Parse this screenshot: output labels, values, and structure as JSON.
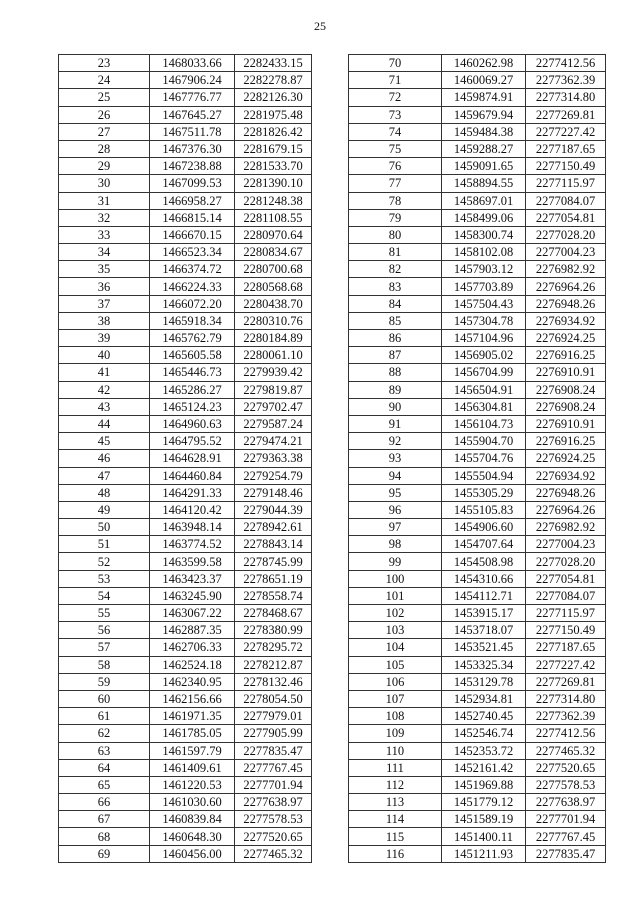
{
  "page_number": "25",
  "left_table": {
    "rows": [
      [
        "23",
        "1468033.66",
        "2282433.15"
      ],
      [
        "24",
        "1467906.24",
        "2282278.87"
      ],
      [
        "25",
        "1467776.77",
        "2282126.30"
      ],
      [
        "26",
        "1467645.27",
        "2281975.48"
      ],
      [
        "27",
        "1467511.78",
        "2281826.42"
      ],
      [
        "28",
        "1467376.30",
        "2281679.15"
      ],
      [
        "29",
        "1467238.88",
        "2281533.70"
      ],
      [
        "30",
        "1467099.53",
        "2281390.10"
      ],
      [
        "31",
        "1466958.27",
        "2281248.38"
      ],
      [
        "32",
        "1466815.14",
        "2281108.55"
      ],
      [
        "33",
        "1466670.15",
        "2280970.64"
      ],
      [
        "34",
        "1466523.34",
        "2280834.67"
      ],
      [
        "35",
        "1466374.72",
        "2280700.68"
      ],
      [
        "36",
        "1466224.33",
        "2280568.68"
      ],
      [
        "37",
        "1466072.20",
        "2280438.70"
      ],
      [
        "38",
        "1465918.34",
        "2280310.76"
      ],
      [
        "39",
        "1465762.79",
        "2280184.89"
      ],
      [
        "40",
        "1465605.58",
        "2280061.10"
      ],
      [
        "41",
        "1465446.73",
        "2279939.42"
      ],
      [
        "42",
        "1465286.27",
        "2279819.87"
      ],
      [
        "43",
        "1465124.23",
        "2279702.47"
      ],
      [
        "44",
        "1464960.63",
        "2279587.24"
      ],
      [
        "45",
        "1464795.52",
        "2279474.21"
      ],
      [
        "46",
        "1464628.91",
        "2279363.38"
      ],
      [
        "47",
        "1464460.84",
        "2279254.79"
      ],
      [
        "48",
        "1464291.33",
        "2279148.46"
      ],
      [
        "49",
        "1464120.42",
        "2279044.39"
      ],
      [
        "50",
        "1463948.14",
        "2278942.61"
      ],
      [
        "51",
        "1463774.52",
        "2278843.14"
      ],
      [
        "52",
        "1463599.58",
        "2278745.99"
      ],
      [
        "53",
        "1463423.37",
        "2278651.19"
      ],
      [
        "54",
        "1463245.90",
        "2278558.74"
      ],
      [
        "55",
        "1463067.22",
        "2278468.67"
      ],
      [
        "56",
        "1462887.35",
        "2278380.99"
      ],
      [
        "57",
        "1462706.33",
        "2278295.72"
      ],
      [
        "58",
        "1462524.18",
        "2278212.87"
      ],
      [
        "59",
        "1462340.95",
        "2278132.46"
      ],
      [
        "60",
        "1462156.66",
        "2278054.50"
      ],
      [
        "61",
        "1461971.35",
        "2277979.01"
      ],
      [
        "62",
        "1461785.05",
        "2277905.99"
      ],
      [
        "63",
        "1461597.79",
        "2277835.47"
      ],
      [
        "64",
        "1461409.61",
        "2277767.45"
      ],
      [
        "65",
        "1461220.53",
        "2277701.94"
      ],
      [
        "66",
        "1461030.60",
        "2277638.97"
      ],
      [
        "67",
        "1460839.84",
        "2277578.53"
      ],
      [
        "68",
        "1460648.30",
        "2277520.65"
      ],
      [
        "69",
        "1460456.00",
        "2277465.32"
      ]
    ]
  },
  "right_table": {
    "rows": [
      [
        "70",
        "1460262.98",
        "2277412.56"
      ],
      [
        "71",
        "1460069.27",
        "2277362.39"
      ],
      [
        "72",
        "1459874.91",
        "2277314.80"
      ],
      [
        "73",
        "1459679.94",
        "2277269.81"
      ],
      [
        "74",
        "1459484.38",
        "2277227.42"
      ],
      [
        "75",
        "1459288.27",
        "2277187.65"
      ],
      [
        "76",
        "1459091.65",
        "2277150.49"
      ],
      [
        "77",
        "1458894.55",
        "2277115.97"
      ],
      [
        "78",
        "1458697.01",
        "2277084.07"
      ],
      [
        "79",
        "1458499.06",
        "2277054.81"
      ],
      [
        "80",
        "1458300.74",
        "2277028.20"
      ],
      [
        "81",
        "1458102.08",
        "2277004.23"
      ],
      [
        "82",
        "1457903.12",
        "2276982.92"
      ],
      [
        "83",
        "1457703.89",
        "2276964.26"
      ],
      [
        "84",
        "1457504.43",
        "2276948.26"
      ],
      [
        "85",
        "1457304.78",
        "2276934.92"
      ],
      [
        "86",
        "1457104.96",
        "2276924.25"
      ],
      [
        "87",
        "1456905.02",
        "2276916.25"
      ],
      [
        "88",
        "1456704.99",
        "2276910.91"
      ],
      [
        "89",
        "1456504.91",
        "2276908.24"
      ],
      [
        "90",
        "1456304.81",
        "2276908.24"
      ],
      [
        "91",
        "1456104.73",
        "2276910.91"
      ],
      [
        "92",
        "1455904.70",
        "2276916.25"
      ],
      [
        "93",
        "1455704.76",
        "2276924.25"
      ],
      [
        "94",
        "1455504.94",
        "2276934.92"
      ],
      [
        "95",
        "1455305.29",
        "2276948.26"
      ],
      [
        "96",
        "1455105.83",
        "2276964.26"
      ],
      [
        "97",
        "1454906.60",
        "2276982.92"
      ],
      [
        "98",
        "1454707.64",
        "2277004.23"
      ],
      [
        "99",
        "1454508.98",
        "2277028.20"
      ],
      [
        "100",
        "1454310.66",
        "2277054.81"
      ],
      [
        "101",
        "1454112.71",
        "2277084.07"
      ],
      [
        "102",
        "1453915.17",
        "2277115.97"
      ],
      [
        "103",
        "1453718.07",
        "2277150.49"
      ],
      [
        "104",
        "1453521.45",
        "2277187.65"
      ],
      [
        "105",
        "1453325.34",
        "2277227.42"
      ],
      [
        "106",
        "1453129.78",
        "2277269.81"
      ],
      [
        "107",
        "1452934.81",
        "2277314.80"
      ],
      [
        "108",
        "1452740.45",
        "2277362.39"
      ],
      [
        "109",
        "1452546.74",
        "2277412.56"
      ],
      [
        "110",
        "1452353.72",
        "2277465.32"
      ],
      [
        "111",
        "1452161.42",
        "2277520.65"
      ],
      [
        "112",
        "1451969.88",
        "2277578.53"
      ],
      [
        "113",
        "1451779.12",
        "2277638.97"
      ],
      [
        "114",
        "1451589.19",
        "2277701.94"
      ],
      [
        "115",
        "1451400.11",
        "2277767.45"
      ],
      [
        "116",
        "1451211.93",
        "2277835.47"
      ]
    ]
  }
}
